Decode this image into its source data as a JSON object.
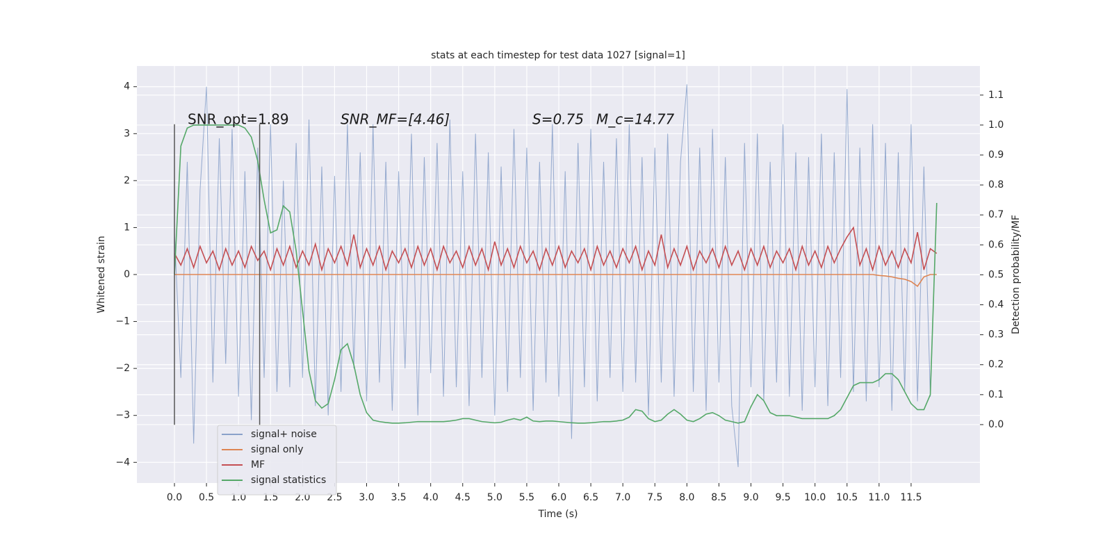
{
  "chart_data": {
    "type": "line",
    "title": "stats at each timestep for test data 1027 [signal=1]",
    "xlabel": "Time (s)",
    "ylabel": "Whitened strain",
    "y2label": "Detection probability/MF",
    "annotations": [
      "SNR_opt=1.89",
      "SNR_MF=[4.46]",
      "S=0.75",
      "M_c=14.77"
    ],
    "vlines": [
      0,
      1.33
    ],
    "vline_range": [
      -3.2,
      3.2
    ],
    "xlim": [
      -0.586,
      12.575
    ],
    "ylim": [
      -4.44,
      4.44
    ],
    "y2lim": [
      -0.195,
      1.197
    ],
    "xticks": [
      {
        "value": 0,
        "label": "0.0"
      },
      0.5,
      {
        "value": 1,
        "label": "1.0"
      },
      1.5,
      {
        "value": 2,
        "label": "2.0"
      },
      2.5,
      {
        "value": 3,
        "label": "3.0"
      },
      3.5,
      {
        "value": 4,
        "label": "4.0"
      },
      4.5,
      {
        "value": 5,
        "label": "5.0"
      },
      5.5,
      {
        "value": 6,
        "label": "6.0"
      },
      6.5,
      {
        "value": 7,
        "label": "7.0"
      },
      7.5,
      {
        "value": 8,
        "label": "8.0"
      },
      8.5,
      {
        "value": 9,
        "label": "9.0"
      },
      9.5,
      {
        "value": 10,
        "label": "10.0"
      },
      10.5,
      {
        "value": 11,
        "label": "11.0"
      },
      11.5
    ],
    "yticks": [
      {
        "value": -4,
        "label": "−4"
      },
      {
        "value": -3,
        "label": "−3"
      },
      {
        "value": -2,
        "label": "−2"
      },
      {
        "value": -1,
        "label": "−1"
      },
      0,
      1,
      2,
      3,
      4
    ],
    "y2ticks": [
      {
        "value": 0,
        "label": "0.0"
      },
      0.1,
      0.2,
      0.3,
      0.4,
      0.5,
      0.6,
      0.7,
      0.8,
      0.9,
      {
        "value": 1,
        "label": "1.0"
      },
      1.1
    ],
    "grid": true,
    "legend": "lower left",
    "x": [
      0.0,
      0.1,
      0.2,
      0.3,
      0.4,
      0.5,
      0.6,
      0.7,
      0.8,
      0.9,
      1.0,
      1.1,
      1.2,
      1.3,
      1.4,
      1.5,
      1.6,
      1.7,
      1.8,
      1.9,
      2.0,
      2.1,
      2.2,
      2.3,
      2.4,
      2.5,
      2.6,
      2.7,
      2.8,
      2.9,
      3.0,
      3.1,
      3.2,
      3.3,
      3.4,
      3.5,
      3.6,
      3.7,
      3.8,
      3.9,
      4.0,
      4.1,
      4.2,
      4.3,
      4.4,
      4.5,
      4.6,
      4.7,
      4.8,
      4.9,
      5.0,
      5.1,
      5.2,
      5.3,
      5.4,
      5.5,
      5.6,
      5.7,
      5.8,
      5.9,
      6.0,
      6.1,
      6.2,
      6.3,
      6.4,
      6.5,
      6.6,
      6.7,
      6.8,
      6.9,
      7.0,
      7.1,
      7.2,
      7.3,
      7.4,
      7.5,
      7.6,
      7.7,
      7.8,
      7.9,
      8.0,
      8.1,
      8.2,
      8.3,
      8.4,
      8.5,
      8.6,
      8.7,
      8.8,
      8.9,
      9.0,
      9.1,
      9.2,
      9.3,
      9.4,
      9.5,
      9.6,
      9.7,
      9.8,
      9.9,
      10.0,
      10.1,
      10.2,
      10.3,
      10.4,
      10.5,
      10.6,
      10.7,
      10.8,
      10.9,
      11.0,
      11.1,
      11.2,
      11.3,
      11.4,
      11.5,
      11.6,
      11.7,
      11.8,
      11.9
    ],
    "series": [
      {
        "name": "signal+ noise",
        "color": "#4c72b0",
        "values": [
          0.9,
          -2.2,
          2.4,
          -3.6,
          1.8,
          4.0,
          -2.3,
          2.9,
          -1.9,
          3.1,
          -2.6,
          2.2,
          -3.1,
          2.7,
          -2.2,
          3.2,
          -2.5,
          2.0,
          -2.4,
          2.8,
          -2.2,
          3.3,
          -2.8,
          2.3,
          -3.0,
          2.1,
          -2.5,
          3.2,
          -2.0,
          2.6,
          -2.7,
          3.2,
          -2.3,
          2.4,
          -2.9,
          2.2,
          -2.0,
          3.0,
          -3.0,
          2.5,
          -2.1,
          2.8,
          -2.6,
          3.3,
          -2.4,
          2.2,
          -2.8,
          3.0,
          -2.2,
          2.6,
          -3.0,
          2.3,
          -2.5,
          3.1,
          -2.2,
          2.7,
          -2.9,
          2.4,
          -2.3,
          3.2,
          -2.6,
          2.2,
          -3.5,
          2.8,
          -2.4,
          3.1,
          -2.7,
          2.4,
          -2.2,
          2.9,
          -2.5,
          3.2,
          -2.3,
          2.5,
          -3.0,
          2.7,
          -2.3,
          3.0,
          -2.6,
          2.4,
          4.05,
          -2.5,
          2.7,
          -2.9,
          3.1,
          -2.3,
          2.5,
          -2.8,
          -4.1,
          2.8,
          -2.4,
          3.0,
          -2.7,
          2.4,
          -2.3,
          3.2,
          -2.6,
          2.6,
          -2.9,
          2.5,
          -2.4,
          3.0,
          -2.8,
          2.6,
          -2.2,
          3.95,
          -2.5,
          2.7,
          -2.7,
          3.2,
          -2.4,
          2.8,
          -2.9,
          2.6,
          -2.5,
          3.2,
          -2.7,
          2.3,
          -2.6,
          1.5
        ]
      },
      {
        "name": "signal only",
        "color": "#dd8452",
        "values": [
          0,
          0,
          0,
          0,
          0,
          0,
          0,
          0,
          0,
          0,
          0,
          0,
          0,
          0,
          0,
          0,
          0,
          0,
          0,
          0,
          0,
          0,
          0,
          0,
          0,
          0,
          0,
          0,
          0,
          0,
          0,
          0,
          0,
          0,
          0,
          0,
          0,
          0,
          0,
          0,
          0,
          0,
          0,
          0,
          0,
          0,
          0,
          0,
          0,
          0,
          0,
          0,
          0,
          0,
          0,
          0,
          0,
          0,
          0,
          0,
          0,
          0,
          0,
          0,
          0,
          0,
          0,
          0,
          0,
          0,
          0,
          0,
          0,
          0,
          0,
          0,
          0,
          0,
          0,
          0,
          0,
          0,
          0,
          0,
          0,
          0,
          0,
          0,
          0,
          0,
          0,
          0,
          0,
          0,
          0,
          0,
          0,
          0,
          0,
          0,
          0,
          0,
          0,
          0,
          0,
          0,
          0,
          0,
          0,
          0,
          -0.02,
          -0.03,
          -0.05,
          -0.08,
          -0.1,
          -0.15,
          -0.25,
          -0.05,
          0,
          0
        ]
      },
      {
        "name": "MF",
        "color": "#c44e52",
        "values": [
          0.45,
          0.2,
          0.55,
          0.15,
          0.6,
          0.25,
          0.5,
          0.1,
          0.55,
          0.2,
          0.5,
          0.15,
          0.6,
          0.3,
          0.5,
          0.1,
          0.55,
          0.2,
          0.6,
          0.15,
          0.5,
          0.2,
          0.65,
          0.1,
          0.55,
          0.25,
          0.6,
          0.2,
          0.85,
          0.15,
          0.55,
          0.2,
          0.6,
          0.1,
          0.5,
          0.25,
          0.55,
          0.15,
          0.6,
          0.2,
          0.55,
          0.1,
          0.6,
          0.25,
          0.5,
          0.15,
          0.6,
          0.2,
          0.55,
          0.1,
          0.7,
          0.2,
          0.55,
          0.15,
          0.6,
          0.25,
          0.5,
          0.1,
          0.55,
          0.2,
          0.6,
          0.15,
          0.5,
          0.25,
          0.55,
          0.1,
          0.6,
          0.2,
          0.5,
          0.15,
          0.55,
          0.25,
          0.6,
          0.1,
          0.5,
          0.2,
          0.85,
          0.15,
          0.55,
          0.2,
          0.6,
          0.1,
          0.5,
          0.25,
          0.55,
          0.15,
          0.6,
          0.2,
          0.5,
          0.1,
          0.55,
          0.2,
          0.6,
          0.15,
          0.5,
          0.25,
          0.55,
          0.1,
          0.6,
          0.2,
          0.5,
          0.15,
          0.6,
          0.25,
          0.55,
          0.8,
          1.0,
          0.2,
          0.55,
          0.1,
          0.6,
          0.2,
          0.5,
          0.15,
          0.55,
          0.25,
          0.9,
          0.1,
          0.55,
          0.45
        ]
      },
      {
        "name": "signal statistics",
        "color": "#55a868",
        "axis": "y2",
        "values": [
          0.5,
          0.93,
          0.99,
          1.0,
          1.0,
          1.0,
          1.0,
          1.0,
          1.0,
          1.0,
          1.0,
          0.99,
          0.96,
          0.88,
          0.75,
          0.64,
          0.65,
          0.73,
          0.71,
          0.58,
          0.38,
          0.18,
          0.08,
          0.055,
          0.07,
          0.15,
          0.25,
          0.27,
          0.2,
          0.1,
          0.04,
          0.015,
          0.01,
          0.007,
          0.005,
          0.005,
          0.006,
          0.008,
          0.01,
          0.01,
          0.01,
          0.01,
          0.01,
          0.012,
          0.015,
          0.02,
          0.02,
          0.015,
          0.01,
          0.008,
          0.006,
          0.008,
          0.015,
          0.02,
          0.015,
          0.025,
          0.012,
          0.01,
          0.012,
          0.012,
          0.01,
          0.008,
          0.006,
          0.005,
          0.005,
          0.006,
          0.008,
          0.01,
          0.01,
          0.012,
          0.015,
          0.025,
          0.05,
          0.045,
          0.02,
          0.01,
          0.015,
          0.035,
          0.05,
          0.035,
          0.015,
          0.01,
          0.02,
          0.035,
          0.04,
          0.03,
          0.015,
          0.01,
          0.005,
          0.01,
          0.06,
          0.1,
          0.08,
          0.04,
          0.03,
          0.03,
          0.03,
          0.025,
          0.02,
          0.02,
          0.02,
          0.02,
          0.02,
          0.03,
          0.05,
          0.09,
          0.13,
          0.14,
          0.14,
          0.14,
          0.15,
          0.17,
          0.17,
          0.15,
          0.11,
          0.07,
          0.05,
          0.05,
          0.1,
          0.74
        ]
      }
    ]
  }
}
